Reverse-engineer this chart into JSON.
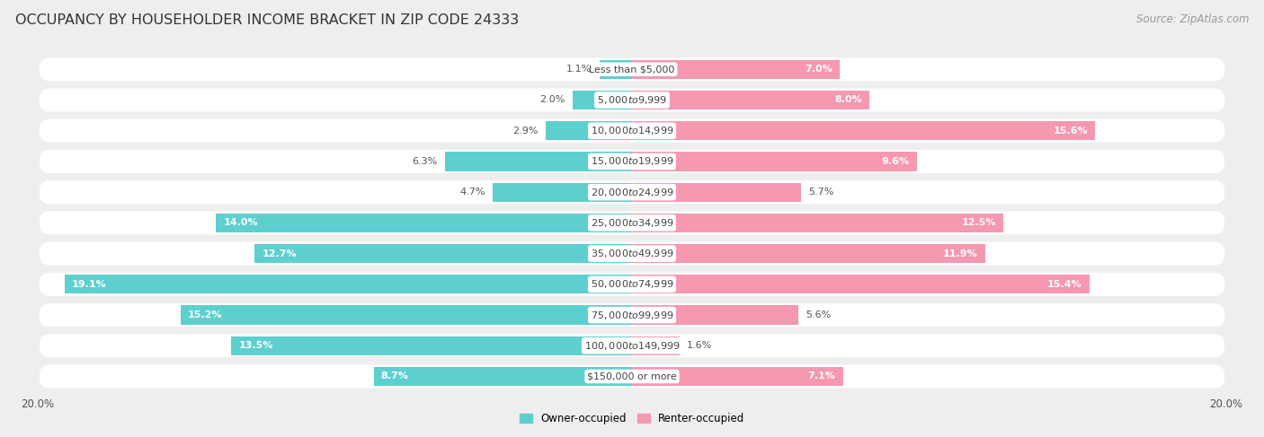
{
  "title": "OCCUPANCY BY HOUSEHOLDER INCOME BRACKET IN ZIP CODE 24333",
  "source": "Source: ZipAtlas.com",
  "categories": [
    "Less than $5,000",
    "$5,000 to $9,999",
    "$10,000 to $14,999",
    "$15,000 to $19,999",
    "$20,000 to $24,999",
    "$25,000 to $34,999",
    "$35,000 to $49,999",
    "$50,000 to $74,999",
    "$75,000 to $99,999",
    "$100,000 to $149,999",
    "$150,000 or more"
  ],
  "owner_values": [
    1.1,
    2.0,
    2.9,
    6.3,
    4.7,
    14.0,
    12.7,
    19.1,
    15.2,
    13.5,
    8.7
  ],
  "renter_values": [
    7.0,
    8.0,
    15.6,
    9.6,
    5.7,
    12.5,
    11.9,
    15.4,
    5.6,
    1.6,
    7.1
  ],
  "owner_color": "#5ecfcf",
  "renter_color": "#f598b0",
  "owner_label": "Owner-occupied",
  "renter_label": "Renter-occupied",
  "axis_limit": 20.0,
  "background_color": "#eeeeee",
  "bar_background": "#ffffff",
  "title_fontsize": 11.5,
  "source_fontsize": 8.5,
  "value_fontsize": 8,
  "category_fontsize": 8,
  "bar_height": 0.62,
  "inside_threshold": 7.0
}
